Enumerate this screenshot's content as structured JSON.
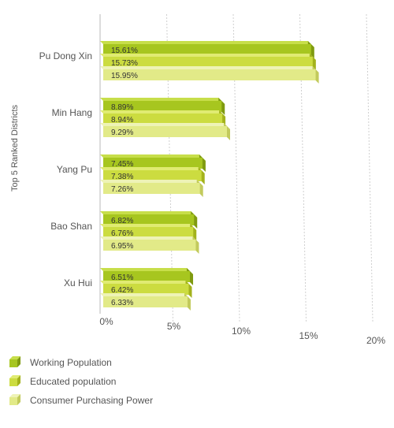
{
  "chart_data": {
    "type": "bar",
    "orientation": "horizontal",
    "style": "3d",
    "ylabel": "Top 5 Ranked Districts",
    "xlabel": "",
    "xlim": [
      0,
      20
    ],
    "x_ticks": [
      "0%",
      "5%",
      "10%",
      "15%",
      "20%"
    ],
    "tick_values": [
      0,
      5,
      10,
      15,
      20
    ],
    "grid": "x-major",
    "legend_position": "bottom-left",
    "categories": [
      "Pu Dong Xin",
      "Min Hang",
      "Yang Pu",
      "Bao Shan",
      "Xu Hui"
    ],
    "series": [
      {
        "name": "Working Population",
        "values": [
          15.61,
          8.89,
          7.45,
          6.82,
          6.51
        ],
        "labels": [
          "15.61%",
          "8.89%",
          "7.45%",
          "6.82%",
          "6.51%"
        ],
        "color": "#a7c61f",
        "top_color": "#c7de4a",
        "side_color": "#7f9a10"
      },
      {
        "name": "Educated population",
        "values": [
          15.73,
          8.94,
          7.38,
          6.76,
          6.42
        ],
        "labels": [
          "15.73%",
          "8.94%",
          "7.38%",
          "6.76%",
          "6.42%"
        ],
        "color": "#ccdc40",
        "top_color": "#e0eb72",
        "side_color": "#a3b21c"
      },
      {
        "name": "Consumer Purchasing Power",
        "values": [
          15.95,
          9.29,
          7.26,
          6.95,
          6.33
        ],
        "labels": [
          "15.95%",
          "9.29%",
          "7.26%",
          "6.95%",
          "6.33%"
        ],
        "color": "#e2ea88",
        "top_color": "#eef3b6",
        "side_color": "#c2ca5c"
      }
    ]
  }
}
